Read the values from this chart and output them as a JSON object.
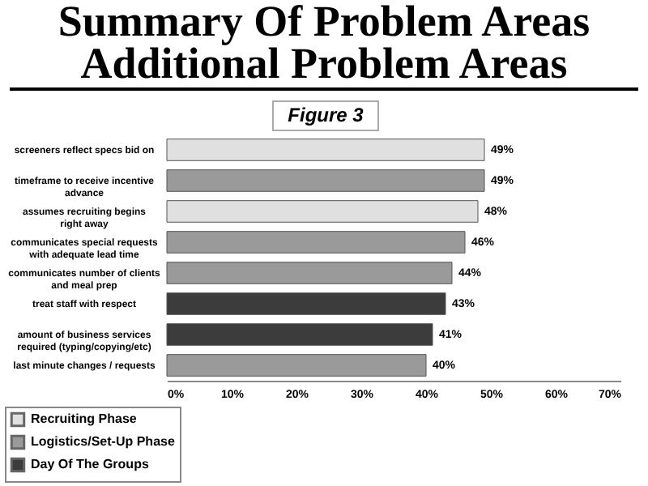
{
  "chart_data": {
    "type": "bar",
    "orientation": "horizontal",
    "title": "Summary Of Problem Areas",
    "subtitle": "Additional Problem Areas",
    "annotations": [
      "Figure 3"
    ],
    "categories": [
      "screeners reflect specs bid on",
      "timeframe to receive incentive advance",
      "assumes recruiting begins right away",
      "communicates special requests with adequate lead time",
      "communicates number of clients and meal prep",
      "treat staff with respect",
      "amount of business services required (typing/copying/etc)",
      "last minute changes / requests"
    ],
    "series": [
      {
        "name": "Recruiting Phase",
        "color": "#e0e0e0",
        "values": [
          49,
          null,
          48,
          null,
          null,
          null,
          null,
          null
        ],
        "value_labels": [
          "49%",
          null,
          "48%",
          null,
          null,
          null,
          null,
          null
        ]
      },
      {
        "name": "Logistics/Set-Up Phase",
        "color": "#9a9a9a",
        "values": [
          null,
          49,
          null,
          46,
          44,
          null,
          null,
          40
        ],
        "value_labels": [
          null,
          "49%",
          null,
          "46%",
          "44%",
          null,
          null,
          "40%"
        ]
      },
      {
        "name": "Day Of The Groups",
        "color": "#3c3c3c",
        "values": [
          null,
          null,
          null,
          null,
          null,
          43,
          41,
          null
        ],
        "value_labels": [
          null,
          null,
          null,
          null,
          null,
          "43%",
          "41%",
          null
        ]
      }
    ],
    "xlim": [
      0,
      70
    ],
    "xticks": [
      {
        "value": 0,
        "label": "0%"
      },
      {
        "value": 10,
        "label": "10%"
      },
      {
        "value": 20,
        "label": "20%"
      },
      {
        "value": 30,
        "label": "30%"
      },
      {
        "value": 40,
        "label": "40%"
      },
      {
        "value": 50,
        "label": "50%"
      },
      {
        "value": 60,
        "label": "60%"
      },
      {
        "value": 70,
        "label": "70%"
      }
    ],
    "grid": false,
    "legend": "bottom left"
  }
}
